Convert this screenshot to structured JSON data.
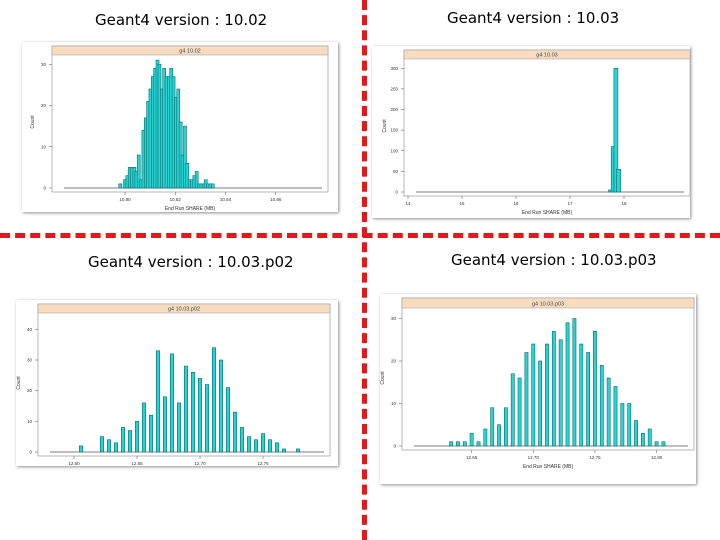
{
  "panels": [
    {
      "heading": "Geant4 version : 10.02",
      "chart_data": {
        "type": "bar",
        "strip": "g4 10.02",
        "xlabel": "End Run SHARE (MB)",
        "ylabel": "Count",
        "xlim": [
          10.78,
          10.86
        ],
        "ylim": [
          0,
          32
        ],
        "x_ticks": [
          "10.80",
          "10.82",
          "10.84",
          "10.86"
        ],
        "x_tick_positions": [
          10.8,
          10.815,
          10.83,
          10.845
        ],
        "y_ticks": [
          0,
          10,
          20,
          30
        ],
        "x": [
          10.7986,
          10.8,
          10.8007,
          10.8014,
          10.8021,
          10.8028,
          10.8034,
          10.8041,
          10.8048,
          10.8055,
          10.8062,
          10.8069,
          10.8076,
          10.8083,
          10.809,
          10.8097,
          10.8103,
          10.811,
          10.8117,
          10.8124,
          10.8131,
          10.8138,
          10.8145,
          10.8152,
          10.8159,
          10.8166,
          10.8172,
          10.8179,
          10.8186,
          10.8193,
          10.82,
          10.8207,
          10.8214,
          10.8221,
          10.8228,
          10.8235,
          10.8241,
          10.8248,
          10.8255,
          10.8262
        ],
        "values": [
          1,
          2,
          3,
          5,
          5,
          5,
          4,
          8,
          2,
          14,
          17,
          21,
          24,
          27,
          29,
          31,
          30,
          24,
          29,
          27,
          27,
          29,
          27,
          22,
          24,
          16,
          8,
          15,
          6,
          2,
          2,
          3,
          4,
          1,
          1,
          1,
          2,
          1,
          1,
          1
        ]
      }
    },
    {
      "heading": "Geant4 version : 10.03",
      "chart_data": {
        "type": "bar",
        "strip": "g4 10.03",
        "xlabel": "End Run SHARE (MB)",
        "ylabel": "Count",
        "xlim": [
          14,
          19
        ],
        "ylim": [
          0,
          320
        ],
        "x_ticks": [
          "14",
          "15",
          "16",
          "17",
          "18"
        ],
        "y_ticks": [
          0,
          50,
          100,
          150,
          200,
          250,
          300
        ],
        "x": [
          17.75,
          17.8,
          17.85,
          17.9
        ],
        "values": [
          5,
          110,
          300,
          55
        ]
      }
    },
    {
      "heading": "Geant4 version : 10.03.p02",
      "chart_data": {
        "type": "bar",
        "strip": "g4 10.03.p02",
        "xlabel": "End Run SHARE (MB)",
        "ylabel": "Count",
        "xlim": [
          12.6,
          12.8
        ],
        "ylim": [
          0,
          45
        ],
        "x_ticks": [
          "12.60",
          "12.65",
          "12.70",
          "12.75"
        ],
        "x_tick_positions": [
          12.62,
          12.665,
          12.71,
          12.755
        ],
        "y_ticks": [
          0,
          10,
          20,
          30,
          40
        ],
        "x": [
          12.625,
          12.64,
          12.645,
          12.65,
          12.655,
          12.66,
          12.665,
          12.67,
          12.675,
          12.68,
          12.685,
          12.69,
          12.695,
          12.7,
          12.705,
          12.71,
          12.715,
          12.72,
          12.725,
          12.73,
          12.735,
          12.74,
          12.745,
          12.75,
          12.755,
          12.76,
          12.765,
          12.77,
          12.775,
          12.78
        ],
        "values": [
          2,
          5,
          4,
          3,
          8,
          7,
          10,
          16,
          12,
          33,
          18,
          32,
          16,
          28,
          26,
          24,
          22,
          34,
          30,
          21,
          13,
          8,
          5,
          4,
          6,
          4,
          3,
          1,
          0,
          1
        ]
      }
    },
    {
      "heading": "Geant4 version : 10.03.p03",
      "chart_data": {
        "type": "bar",
        "strip": "g4 10.03.p03",
        "xlabel": "End Run SHARE (MB)",
        "ylabel": "Count",
        "xlim": [
          12.6,
          12.8
        ],
        "ylim": [
          0,
          32
        ],
        "x_ticks": [
          "12.65",
          "12.70",
          "12.75",
          "12.80"
        ],
        "x_tick_positions": [
          12.645,
          12.69,
          12.735,
          12.78
        ],
        "y_ticks": [
          0,
          10,
          20,
          30
        ],
        "x": [
          12.63,
          12.635,
          12.64,
          12.645,
          12.65,
          12.655,
          12.66,
          12.665,
          12.67,
          12.675,
          12.68,
          12.685,
          12.69,
          12.695,
          12.7,
          12.705,
          12.71,
          12.715,
          12.72,
          12.725,
          12.73,
          12.735,
          12.74,
          12.745,
          12.75,
          12.755,
          12.76,
          12.765,
          12.77,
          12.775,
          12.78,
          12.785
        ],
        "values": [
          1,
          1,
          1,
          3,
          1,
          4,
          9,
          5,
          9,
          17,
          16,
          22,
          24,
          20,
          24,
          27,
          25,
          29,
          30,
          24,
          22,
          27,
          19,
          16,
          14,
          10,
          10,
          6,
          3,
          4,
          1,
          1
        ]
      }
    }
  ]
}
